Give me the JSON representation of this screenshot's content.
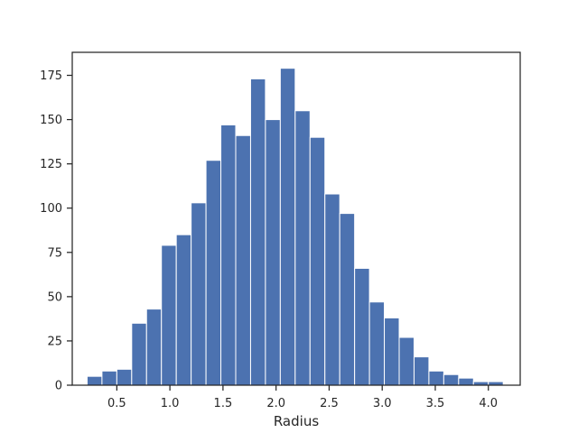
{
  "chart_data": {
    "type": "bar",
    "title": "",
    "xlabel": "Radius",
    "ylabel": "",
    "xlim": [
      0.08,
      4.3
    ],
    "ylim": [
      0,
      188
    ],
    "grid": false,
    "bar_color": "#4c72b0",
    "bins": [
      {
        "x0": 0.22,
        "x1": 0.36,
        "count": 5
      },
      {
        "x0": 0.36,
        "x1": 0.5,
        "count": 8
      },
      {
        "x0": 0.5,
        "x1": 0.64,
        "count": 9
      },
      {
        "x0": 0.64,
        "x1": 0.78,
        "count": 35
      },
      {
        "x0": 0.78,
        "x1": 0.92,
        "count": 43
      },
      {
        "x0": 0.92,
        "x1": 1.06,
        "count": 79
      },
      {
        "x0": 1.06,
        "x1": 1.2,
        "count": 85
      },
      {
        "x0": 1.2,
        "x1": 1.34,
        "count": 103
      },
      {
        "x0": 1.34,
        "x1": 1.48,
        "count": 127
      },
      {
        "x0": 1.48,
        "x1": 1.62,
        "count": 147
      },
      {
        "x0": 1.62,
        "x1": 1.76,
        "count": 141
      },
      {
        "x0": 1.76,
        "x1": 1.9,
        "count": 173
      },
      {
        "x0": 1.9,
        "x1": 2.04,
        "count": 150
      },
      {
        "x0": 2.04,
        "x1": 2.18,
        "count": 179
      },
      {
        "x0": 2.18,
        "x1": 2.32,
        "count": 155
      },
      {
        "x0": 2.32,
        "x1": 2.46,
        "count": 140
      },
      {
        "x0": 2.46,
        "x1": 2.6,
        "count": 108
      },
      {
        "x0": 2.6,
        "x1": 2.74,
        "count": 97
      },
      {
        "x0": 2.74,
        "x1": 2.88,
        "count": 66
      },
      {
        "x0": 2.88,
        "x1": 3.02,
        "count": 47
      },
      {
        "x0": 3.02,
        "x1": 3.16,
        "count": 38
      },
      {
        "x0": 3.16,
        "x1": 3.3,
        "count": 27
      },
      {
        "x0": 3.3,
        "x1": 3.44,
        "count": 16
      },
      {
        "x0": 3.44,
        "x1": 3.58,
        "count": 8
      },
      {
        "x0": 3.58,
        "x1": 3.72,
        "count": 6
      },
      {
        "x0": 3.72,
        "x1": 3.86,
        "count": 4
      },
      {
        "x0": 3.86,
        "x1": 4.0,
        "count": 2
      },
      {
        "x0": 4.0,
        "x1": 4.14,
        "count": 2
      }
    ],
    "x_ticks": [
      {
        "value": 0.5,
        "label": "0.5"
      },
      {
        "value": 1.0,
        "label": "1.0"
      },
      {
        "value": 1.5,
        "label": "1.5"
      },
      {
        "value": 2.0,
        "label": "2.0"
      },
      {
        "value": 2.5,
        "label": "2.5"
      },
      {
        "value": 3.0,
        "label": "3.0"
      },
      {
        "value": 3.5,
        "label": "3.5"
      },
      {
        "value": 4.0,
        "label": "4.0"
      }
    ],
    "y_ticks": [
      {
        "value": 0,
        "label": "0"
      },
      {
        "value": 25,
        "label": "25"
      },
      {
        "value": 50,
        "label": "50"
      },
      {
        "value": 75,
        "label": "75"
      },
      {
        "value": 100,
        "label": "100"
      },
      {
        "value": 125,
        "label": "125"
      },
      {
        "value": 150,
        "label": "150"
      },
      {
        "value": 175,
        "label": "175"
      }
    ]
  }
}
